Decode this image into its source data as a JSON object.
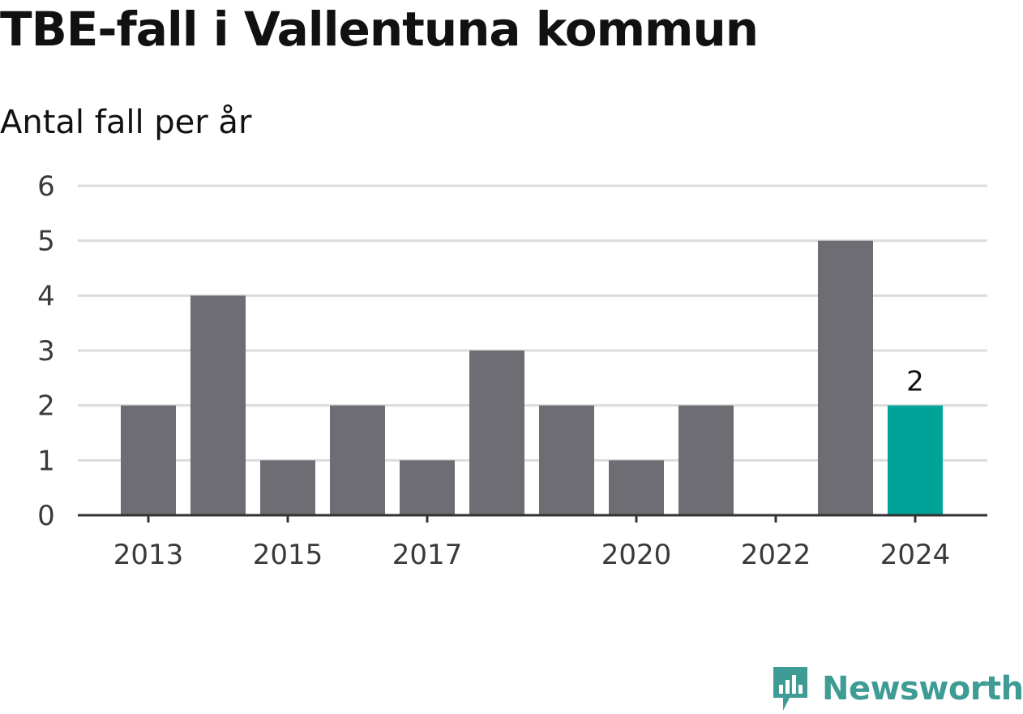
{
  "title": "TBE-fall i Vallentuna kommun",
  "subtitle": "Antal fall per år",
  "brand": {
    "name": "Newsworthy",
    "color": "#3f9c95"
  },
  "colors": {
    "bar": "#6e6d73",
    "highlight": "#00a398",
    "grid": "#dcdcdc",
    "axis": "#333333"
  },
  "chart_data": {
    "type": "bar",
    "categories": [
      "2013",
      "2014",
      "2015",
      "2016",
      "2017",
      "2018",
      "2019",
      "2020",
      "2021",
      "2022",
      "2023",
      "2024"
    ],
    "values": [
      2,
      4,
      1,
      2,
      1,
      3,
      2,
      1,
      2,
      0,
      5,
      2
    ],
    "x_tick_labels": [
      "2013",
      "2015",
      "2017",
      "2020",
      "2022",
      "2024"
    ],
    "y_ticks": [
      0,
      1,
      2,
      3,
      4,
      5,
      6
    ],
    "ylim": [
      0,
      6
    ],
    "highlight_category": "2024",
    "data_labels": [
      {
        "category": "2024",
        "text": "2"
      }
    ],
    "title": "TBE-fall i Vallentuna kommun",
    "subtitle": "Antal fall per år",
    "grid": true,
    "legend": "none"
  }
}
